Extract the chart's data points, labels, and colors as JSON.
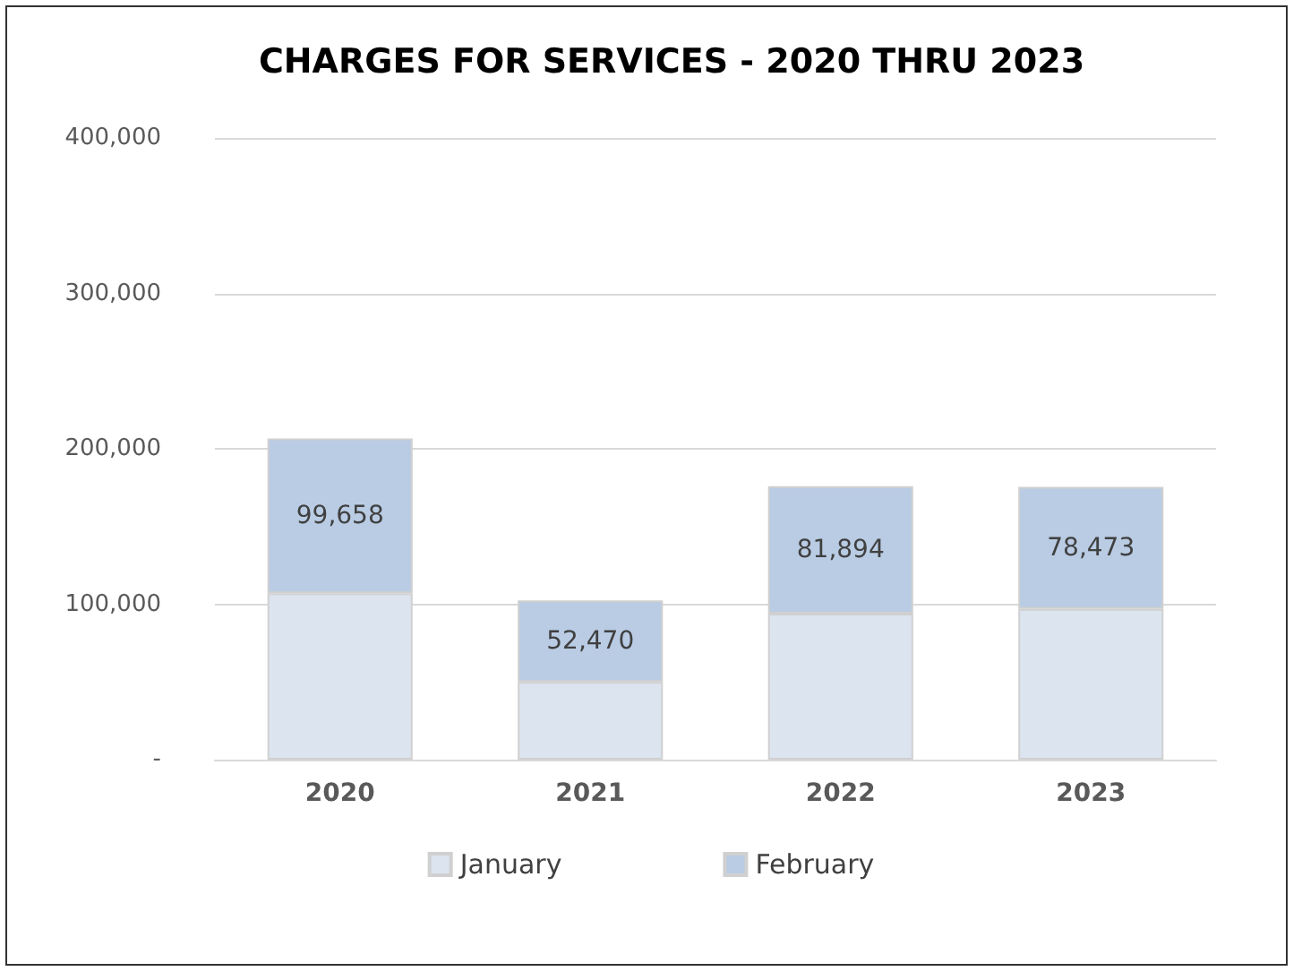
{
  "chart_data": {
    "type": "bar",
    "title": "CHARGES FOR SERVICES - 2020 THRU 2023",
    "categories": [
      "2020",
      "2021",
      "2022",
      "2023"
    ],
    "stacked": true,
    "series": [
      {
        "name": "January",
        "color": "#dce4f0",
        "values": [
          107000,
          50000,
          94000,
          97000
        ]
      },
      {
        "name": "February",
        "color": "#b9cce4",
        "values": [
          99658,
          52470,
          81894,
          78473
        ],
        "value_labels": [
          "99,658",
          "52,470",
          "81,894",
          "78,473"
        ]
      }
    ],
    "ylim": [
      0,
      400000
    ],
    "yticks": [
      {
        "value": 0,
        "label": "-"
      },
      {
        "value": 100000,
        "label": "100,000"
      },
      {
        "value": 200000,
        "label": "200,000"
      },
      {
        "value": 300000,
        "label": "300,000"
      },
      {
        "value": 400000,
        "label": "400,000"
      }
    ],
    "grid": "y",
    "legend": "bottom"
  }
}
